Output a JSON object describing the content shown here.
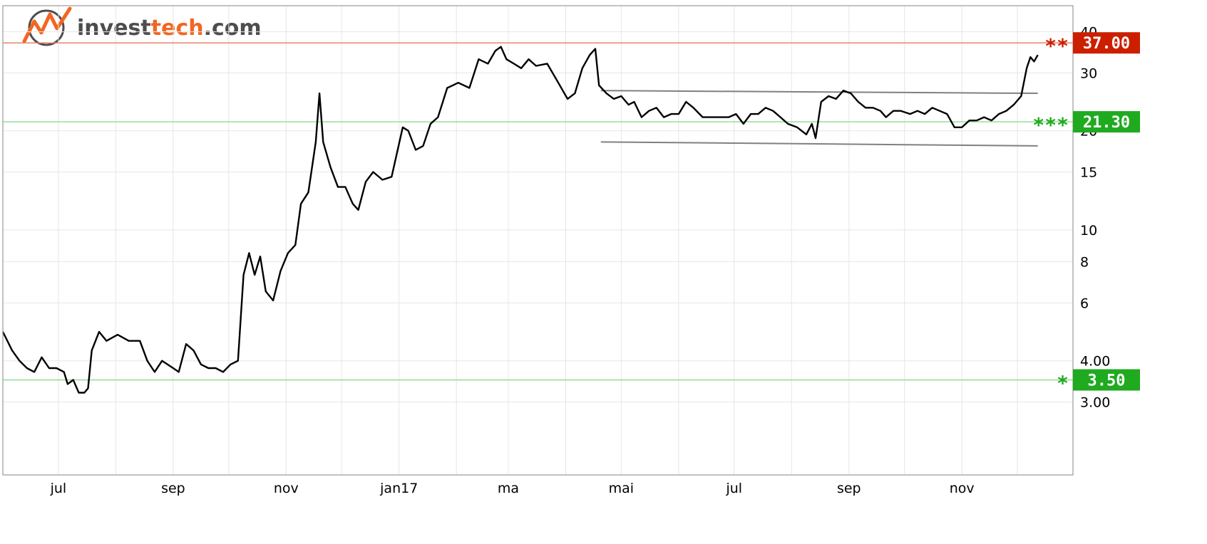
{
  "logo": {
    "part1": "invest",
    "part2": "tech",
    "part3": ".com",
    "color_dark": "#4d4d4d",
    "color_accent": "#f26522"
  },
  "chart_data": {
    "type": "line",
    "title": "",
    "xlabel": "",
    "ylabel": "",
    "y_scale": "log",
    "ylim": [
      1.8,
      48
    ],
    "x_range": [
      "2016-06-01",
      "2017-12-31"
    ],
    "grid": true,
    "x_ticks": [
      {
        "date": "2016-07-01",
        "label": "jul"
      },
      {
        "date": "2016-09-01",
        "label": "sep"
      },
      {
        "date": "2016-11-01",
        "label": "nov"
      },
      {
        "date": "2017-01-01",
        "label": "jan17"
      },
      {
        "date": "2017-03-01",
        "label": "ma"
      },
      {
        "date": "2017-05-01",
        "label": "mai"
      },
      {
        "date": "2017-07-01",
        "label": "jul"
      },
      {
        "date": "2017-09-01",
        "label": "sep"
      },
      {
        "date": "2017-11-01",
        "label": "nov"
      }
    ],
    "y_ticks": [
      {
        "value": 3,
        "label": "3.00"
      },
      {
        "value": 4,
        "label": "4.00"
      },
      {
        "value": 6,
        "label": "6"
      },
      {
        "value": 8,
        "label": "8"
      },
      {
        "value": 10,
        "label": "10"
      },
      {
        "value": 15,
        "label": "15"
      },
      {
        "value": 20,
        "label": "20"
      },
      {
        "value": 30,
        "label": "30"
      },
      {
        "value": 40,
        "label": "40"
      }
    ],
    "series": [
      {
        "color": "#000000",
        "points": [
          [
            "2016-06-01",
            4.9
          ],
          [
            "2016-06-06",
            4.3
          ],
          [
            "2016-06-10",
            4.0
          ],
          [
            "2016-06-14",
            3.8
          ],
          [
            "2016-06-18",
            3.7
          ],
          [
            "2016-06-22",
            4.1
          ],
          [
            "2016-06-26",
            3.8
          ],
          [
            "2016-06-30",
            3.8
          ],
          [
            "2016-07-04",
            3.7
          ],
          [
            "2016-07-06",
            3.4
          ],
          [
            "2016-07-09",
            3.5
          ],
          [
            "2016-07-12",
            3.2
          ],
          [
            "2016-07-15",
            3.2
          ],
          [
            "2016-07-17",
            3.3
          ],
          [
            "2016-07-19",
            4.3
          ],
          [
            "2016-07-23",
            4.9
          ],
          [
            "2016-07-27",
            4.6
          ],
          [
            "2016-08-02",
            4.8
          ],
          [
            "2016-08-08",
            4.6
          ],
          [
            "2016-08-14",
            4.6
          ],
          [
            "2016-08-18",
            4.0
          ],
          [
            "2016-08-22",
            3.7
          ],
          [
            "2016-08-26",
            4.0
          ],
          [
            "2016-09-01",
            3.8
          ],
          [
            "2016-09-04",
            3.7
          ],
          [
            "2016-09-08",
            4.5
          ],
          [
            "2016-09-12",
            4.3
          ],
          [
            "2016-09-16",
            3.9
          ],
          [
            "2016-09-20",
            3.8
          ],
          [
            "2016-09-24",
            3.8
          ],
          [
            "2016-09-28",
            3.7
          ],
          [
            "2016-10-02",
            3.9
          ],
          [
            "2016-10-06",
            4.0
          ],
          [
            "2016-10-09",
            7.3
          ],
          [
            "2016-10-12",
            8.5
          ],
          [
            "2016-10-15",
            7.3
          ],
          [
            "2016-10-18",
            8.3
          ],
          [
            "2016-10-21",
            6.5
          ],
          [
            "2016-10-25",
            6.1
          ],
          [
            "2016-10-29",
            7.5
          ],
          [
            "2016-11-02",
            8.5
          ],
          [
            "2016-11-06",
            9.0
          ],
          [
            "2016-11-09",
            12.0
          ],
          [
            "2016-11-13",
            13.0
          ],
          [
            "2016-11-17",
            18.5
          ],
          [
            "2016-11-19",
            26.0
          ],
          [
            "2016-11-21",
            18.5
          ],
          [
            "2016-11-25",
            15.5
          ],
          [
            "2016-11-29",
            13.5
          ],
          [
            "2016-12-03",
            13.5
          ],
          [
            "2016-12-07",
            12.0
          ],
          [
            "2016-12-10",
            11.5
          ],
          [
            "2016-12-14",
            14.0
          ],
          [
            "2016-12-18",
            15.0
          ],
          [
            "2016-12-23",
            14.2
          ],
          [
            "2016-12-28",
            14.5
          ],
          [
            "2017-01-03",
            20.5
          ],
          [
            "2017-01-06",
            20.0
          ],
          [
            "2017-01-10",
            17.5
          ],
          [
            "2017-01-14",
            18.0
          ],
          [
            "2017-01-18",
            21.0
          ],
          [
            "2017-01-22",
            22.0
          ],
          [
            "2017-01-27",
            27.0
          ],
          [
            "2017-02-02",
            28.0
          ],
          [
            "2017-02-08",
            27.0
          ],
          [
            "2017-02-13",
            33.0
          ],
          [
            "2017-02-18",
            32.0
          ],
          [
            "2017-02-22",
            35.0
          ],
          [
            "2017-02-25",
            36.0
          ],
          [
            "2017-02-28",
            33.0
          ],
          [
            "2017-03-04",
            32.0
          ],
          [
            "2017-03-08",
            31.0
          ],
          [
            "2017-03-12",
            33.0
          ],
          [
            "2017-03-16",
            31.5
          ],
          [
            "2017-03-22",
            32.0
          ],
          [
            "2017-03-28",
            28.0
          ],
          [
            "2017-04-02",
            25.0
          ],
          [
            "2017-04-06",
            26.0
          ],
          [
            "2017-04-10",
            31.0
          ],
          [
            "2017-04-14",
            34.0
          ],
          [
            "2017-04-17",
            35.5
          ],
          [
            "2017-04-19",
            27.5
          ],
          [
            "2017-04-23",
            26.0
          ],
          [
            "2017-04-27",
            25.0
          ],
          [
            "2017-05-01",
            25.5
          ],
          [
            "2017-05-05",
            24.0
          ],
          [
            "2017-05-08",
            24.5
          ],
          [
            "2017-05-12",
            22.0
          ],
          [
            "2017-05-16",
            23.0
          ],
          [
            "2017-05-20",
            23.5
          ],
          [
            "2017-05-24",
            22.0
          ],
          [
            "2017-05-28",
            22.5
          ],
          [
            "2017-06-01",
            22.5
          ],
          [
            "2017-06-05",
            24.5
          ],
          [
            "2017-06-09",
            23.5
          ],
          [
            "2017-06-14",
            22.0
          ],
          [
            "2017-06-18",
            22.0
          ],
          [
            "2017-06-24",
            22.0
          ],
          [
            "2017-06-28",
            22.0
          ],
          [
            "2017-07-02",
            22.5
          ],
          [
            "2017-07-06",
            21.0
          ],
          [
            "2017-07-10",
            22.5
          ],
          [
            "2017-07-14",
            22.5
          ],
          [
            "2017-07-18",
            23.5
          ],
          [
            "2017-07-22",
            23.0
          ],
          [
            "2017-07-26",
            22.0
          ],
          [
            "2017-07-30",
            21.0
          ],
          [
            "2017-08-04",
            20.5
          ],
          [
            "2017-08-09",
            19.5
          ],
          [
            "2017-08-12",
            21.0
          ],
          [
            "2017-08-14",
            19.0
          ],
          [
            "2017-08-17",
            24.5
          ],
          [
            "2017-08-21",
            25.5
          ],
          [
            "2017-08-25",
            25.0
          ],
          [
            "2017-08-29",
            26.5
          ],
          [
            "2017-09-02",
            26.0
          ],
          [
            "2017-09-06",
            24.5
          ],
          [
            "2017-09-10",
            23.5
          ],
          [
            "2017-09-14",
            23.5
          ],
          [
            "2017-09-18",
            23.0
          ],
          [
            "2017-09-21",
            22.0
          ],
          [
            "2017-09-25",
            23.0
          ],
          [
            "2017-09-29",
            23.0
          ],
          [
            "2017-10-04",
            22.5
          ],
          [
            "2017-10-08",
            23.0
          ],
          [
            "2017-10-12",
            22.5
          ],
          [
            "2017-10-16",
            23.5
          ],
          [
            "2017-10-20",
            23.0
          ],
          [
            "2017-10-24",
            22.5
          ],
          [
            "2017-10-28",
            20.5
          ],
          [
            "2017-11-01",
            20.5
          ],
          [
            "2017-11-05",
            21.5
          ],
          [
            "2017-11-09",
            21.5
          ],
          [
            "2017-11-13",
            22.0
          ],
          [
            "2017-11-17",
            21.5
          ],
          [
            "2017-11-21",
            22.5
          ],
          [
            "2017-11-25",
            23.0
          ],
          [
            "2017-11-29",
            24.0
          ],
          [
            "2017-12-03",
            25.5
          ],
          [
            "2017-12-06",
            31.0
          ],
          [
            "2017-12-08",
            33.5
          ],
          [
            "2017-12-10",
            32.5
          ],
          [
            "2017-12-12",
            34.0
          ]
        ]
      }
    ],
    "trend_lines": [
      {
        "color": "#808080",
        "start": [
          "2017-04-20",
          26.5
        ],
        "end": [
          "2017-12-12",
          26.0
        ]
      },
      {
        "color": "#808080",
        "start": [
          "2017-04-20",
          18.5
        ],
        "end": [
          "2017-12-12",
          18.0
        ]
      }
    ],
    "levels": [
      {
        "value": 37.0,
        "label": "37.00",
        "stars": "**",
        "color": "#cc1f00",
        "line_color": "#e8836b"
      },
      {
        "value": 21.3,
        "label": "21.30",
        "stars": "***",
        "color": "#1faa1f",
        "line_color": "#8fd98f"
      },
      {
        "value": 3.5,
        "label": "3.50",
        "stars": "*",
        "color": "#1faa1f",
        "line_color": "#8fd98f"
      }
    ]
  }
}
